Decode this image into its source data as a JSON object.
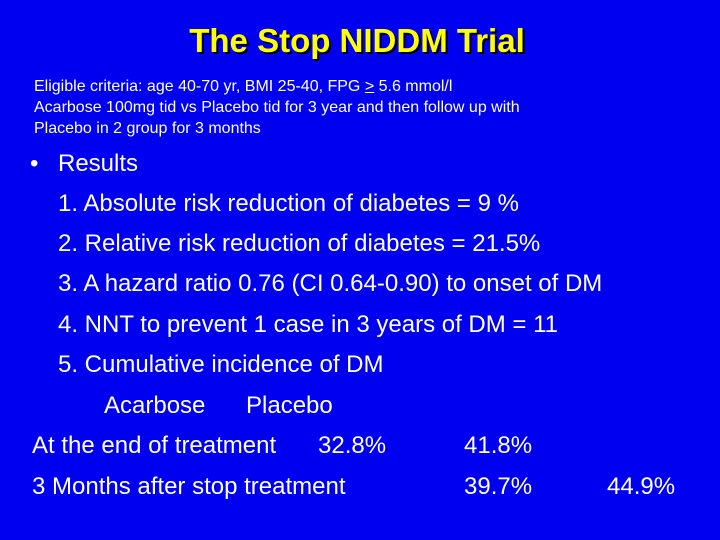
{
  "title": "The Stop NIDDM Trial",
  "criteria": {
    "line1_pre": "Eligible criteria: age 40-70 yr, BMI 25-40, FPG ",
    "line1_ge": ">",
    "line1_post": " 5.6 mmol/l",
    "line2": "Acarbose 100mg tid vs Placebo tid for 3 year and then follow up with",
    "line3": "Placebo in 2 group for 3 months"
  },
  "results": {
    "bullet": "•",
    "heading": "Results",
    "items": [
      "1. Absolute risk reduction of diabetes = 9 %",
      "2. Relative risk reduction of diabetes = 21.5%",
      "3. A hazard ratio 0.76 (CI 0.64-0.90) to onset of DM",
      "4. NNT to prevent 1 case in 3 years of DM = 11",
      "5. Cumulative incidence of DM"
    ]
  },
  "table": {
    "col1": "Acarbose",
    "col2": "Placebo",
    "rows": [
      {
        "label": "At the end of treatment",
        "acarbose": "32.8%",
        "placebo": "41.8%"
      },
      {
        "label": "3 Months after stop treatment",
        "acarbose": "39.7%",
        "placebo": "44.9%"
      }
    ]
  },
  "colors": {
    "background": "#0000f0",
    "title": "#ffff00",
    "text": "#ffffff"
  }
}
